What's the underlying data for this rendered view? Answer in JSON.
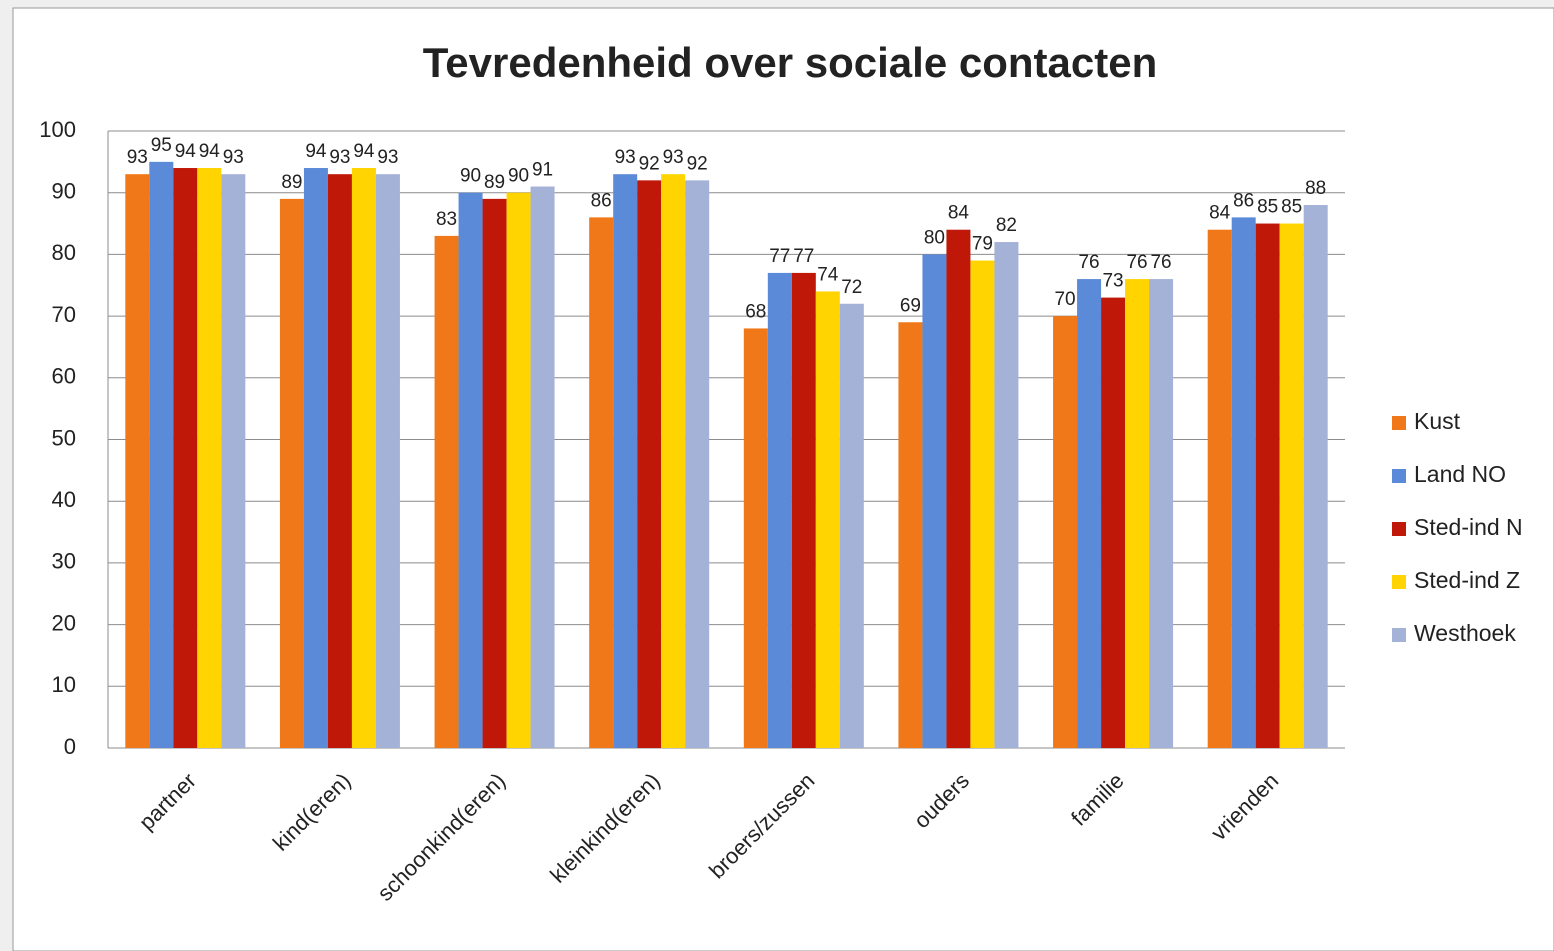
{
  "chart_data": {
    "type": "bar",
    "title": "Tevredenheid over sociale contacten",
    "categories": [
      "partner",
      "kind(eren)",
      "schoonkind(eren)",
      "kleinkind(eren)",
      "broers/zussen",
      "ouders",
      "familie",
      "vrienden"
    ],
    "series": [
      {
        "name": "Kust",
        "color": "#f07818",
        "values": [
          93,
          89,
          83,
          86,
          68,
          69,
          70,
          84
        ]
      },
      {
        "name": "Land NO",
        "color": "#5b8ad8",
        "values": [
          95,
          94,
          90,
          93,
          77,
          80,
          76,
          86
        ]
      },
      {
        "name": "Sted-ind N",
        "color": "#c01808",
        "values": [
          94,
          93,
          89,
          92,
          77,
          84,
          73,
          85
        ]
      },
      {
        "name": "Sted-ind Z",
        "color": "#ffd400",
        "values": [
          94,
          94,
          90,
          93,
          74,
          79,
          76,
          85
        ]
      },
      {
        "name": "Westhoek",
        "color": "#a4b2d8",
        "values": [
          93,
          93,
          91,
          92,
          72,
          82,
          76,
          88
        ]
      }
    ],
    "ylim": [
      0,
      100
    ],
    "yticks": [
      0,
      10,
      20,
      30,
      40,
      50,
      60,
      70,
      80,
      90,
      100
    ],
    "grid": true,
    "legend": "right"
  }
}
